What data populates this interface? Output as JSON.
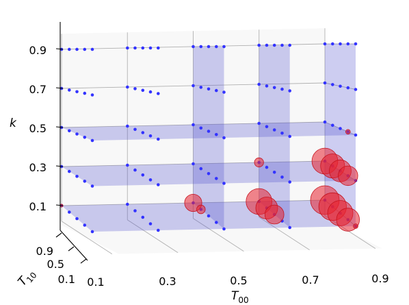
{
  "chart_data": {
    "type": "scatter",
    "projection": "3d",
    "x_axis": {
      "label_base": "T",
      "label_sub": "00",
      "ticks": [
        "0.1",
        "0.3",
        "0.5",
        "0.7",
        "0.9"
      ]
    },
    "y_axis": {
      "label_base": "T",
      "label_sub": "10",
      "ticks": [
        "0.1",
        "0.5",
        "0.9"
      ]
    },
    "z_axis": {
      "label": "k",
      "ticks": [
        "0.1",
        "0.3",
        "0.5",
        "0.7",
        "0.9"
      ]
    },
    "x_values": [
      0.1,
      0.3,
      0.5,
      0.7,
      0.9
    ],
    "y_values": [
      0.1,
      0.3,
      0.5,
      0.7,
      0.9
    ],
    "z_values": [
      0.1,
      0.3,
      0.5,
      0.7,
      0.9
    ],
    "grid": true,
    "colors": {
      "points": "#3333ff",
      "highlight": "#e8232f",
      "plane": "#4a4acc"
    },
    "series": [
      {
        "marker": "small-blue",
        "points": "full grid of all (T00, T10, k) combinations"
      },
      {
        "marker": "red-circle",
        "size_encodes_magnitude": true,
        "points": [
          {
            "x": 0.1,
            "y": 0.1,
            "z": 0.1,
            "size": 0.5
          },
          {
            "x": 0.5,
            "y": 0.1,
            "z": 0.1,
            "size": 3.0
          },
          {
            "x": 0.5,
            "y": 0.3,
            "z": 0.1,
            "size": 1.5
          },
          {
            "x": 0.7,
            "y": 0.1,
            "z": 0.1,
            "size": 4.5
          },
          {
            "x": 0.7,
            "y": 0.3,
            "z": 0.1,
            "size": 3.8
          },
          {
            "x": 0.7,
            "y": 0.5,
            "z": 0.1,
            "size": 3.3
          },
          {
            "x": 0.9,
            "y": 0.1,
            "z": 0.1,
            "size": 5.0
          },
          {
            "x": 0.9,
            "y": 0.3,
            "z": 0.1,
            "size": 4.8
          },
          {
            "x": 0.9,
            "y": 0.5,
            "z": 0.1,
            "size": 4.4
          },
          {
            "x": 0.9,
            "y": 0.7,
            "z": 0.1,
            "size": 4.0
          },
          {
            "x": 0.9,
            "y": 0.9,
            "z": 0.1,
            "size": 0.8
          },
          {
            "x": 0.7,
            "y": 0.1,
            "z": 0.3,
            "size": 1.6
          },
          {
            "x": 0.9,
            "y": 0.1,
            "z": 0.3,
            "size": 4.5
          },
          {
            "x": 0.9,
            "y": 0.3,
            "z": 0.3,
            "size": 4.2
          },
          {
            "x": 0.9,
            "y": 0.5,
            "z": 0.3,
            "size": 3.8
          },
          {
            "x": 0.9,
            "y": 0.7,
            "z": 0.3,
            "size": 3.4
          },
          {
            "x": 0.9,
            "y": 0.7,
            "z": 0.5,
            "size": 0.8
          }
        ]
      }
    ],
    "shaded_planes": [
      {
        "axis": "k",
        "value": 0.1
      },
      {
        "axis": "k",
        "value": 0.3
      },
      {
        "axis": "k",
        "value": 0.5
      },
      {
        "axis": "T00",
        "value": 0.5
      },
      {
        "axis": "T00",
        "value": 0.7
      },
      {
        "axis": "T00",
        "value": 0.9
      }
    ]
  }
}
